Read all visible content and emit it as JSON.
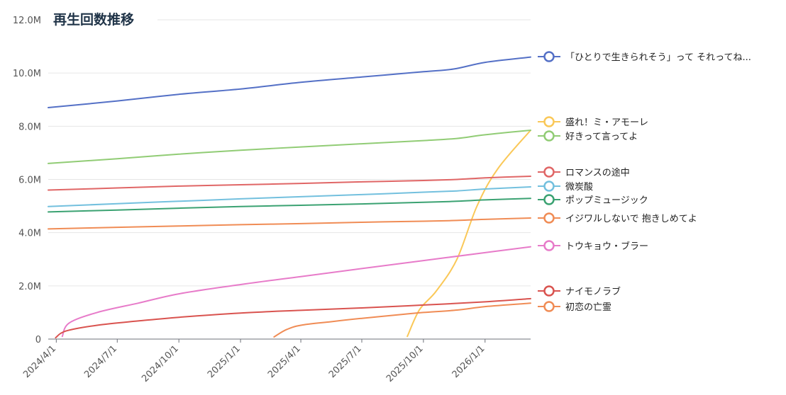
{
  "title": "再生回数推移",
  "chart_data": {
    "type": "line",
    "title": "再生回数推移",
    "xlabel": "",
    "ylabel": "",
    "x_range": [
      "2024-03-20",
      "2026-03-10"
    ],
    "ylim": [
      0,
      12000000
    ],
    "yticks": [
      {
        "value": 0,
        "label": "0"
      },
      {
        "value": 2000000,
        "label": "2.0M"
      },
      {
        "value": 4000000,
        "label": "4.0M"
      },
      {
        "value": 6000000,
        "label": "6.0M"
      },
      {
        "value": 8000000,
        "label": "8.0M"
      },
      {
        "value": 10000000,
        "label": "10.0M"
      },
      {
        "value": 12000000,
        "label": "12.0M"
      }
    ],
    "xticks": [
      {
        "date": "2024-04-01",
        "label": "2024/4/1"
      },
      {
        "date": "2024-07-01",
        "label": "2024/7/1"
      },
      {
        "date": "2024-10-01",
        "label": "2024/10/1"
      },
      {
        "date": "2025-01-01",
        "label": "2025/1/1"
      },
      {
        "date": "2025-04-01",
        "label": "2025/4/1"
      },
      {
        "date": "2025-07-01",
        "label": "2025/7/1"
      },
      {
        "date": "2025-10-01",
        "label": "2025/10/1"
      },
      {
        "date": "2026-01-01",
        "label": "2026/1/1"
      }
    ],
    "grid": true,
    "legend_position": "right",
    "series": [
      {
        "name": "「ひとりで生きられそう」って それってね...",
        "color": "#5470c6",
        "points": [
          [
            "2024-03-20",
            8700000
          ],
          [
            "2024-07-01",
            8950000
          ],
          [
            "2024-10-01",
            9200000
          ],
          [
            "2025-01-01",
            9400000
          ],
          [
            "2025-04-01",
            9650000
          ],
          [
            "2025-07-01",
            9850000
          ],
          [
            "2025-10-01",
            10050000
          ],
          [
            "2025-11-15",
            10150000
          ],
          [
            "2026-01-01",
            10400000
          ],
          [
            "2026-03-10",
            10600000
          ]
        ]
      },
      {
        "name": "盛れ！ミ・アモーレ",
        "color": "#fac858",
        "points": [
          [
            "2025-09-07",
            100000
          ],
          [
            "2025-09-25",
            1100000
          ],
          [
            "2025-10-20",
            1800000
          ],
          [
            "2025-11-20",
            3000000
          ],
          [
            "2025-12-20",
            5000000
          ],
          [
            "2026-01-20",
            6400000
          ],
          [
            "2026-03-10",
            7850000
          ]
        ]
      },
      {
        "name": "好きって言ってよ",
        "color": "#91cc75",
        "points": [
          [
            "2024-03-20",
            6600000
          ],
          [
            "2024-07-01",
            6780000
          ],
          [
            "2024-10-01",
            6950000
          ],
          [
            "2025-01-01",
            7100000
          ],
          [
            "2025-04-01",
            7220000
          ],
          [
            "2025-07-01",
            7340000
          ],
          [
            "2025-10-01",
            7460000
          ],
          [
            "2025-11-20",
            7540000
          ],
          [
            "2026-01-01",
            7680000
          ],
          [
            "2026-03-10",
            7850000
          ]
        ]
      },
      {
        "name": "ロマンスの途中",
        "color": "#e06666",
        "points": [
          [
            "2024-03-20",
            5600000
          ],
          [
            "2024-07-01",
            5680000
          ],
          [
            "2024-10-01",
            5750000
          ],
          [
            "2025-01-01",
            5800000
          ],
          [
            "2025-04-01",
            5850000
          ],
          [
            "2025-07-01",
            5910000
          ],
          [
            "2025-10-01",
            5960000
          ],
          [
            "2025-11-20",
            6000000
          ],
          [
            "2026-01-01",
            6060000
          ],
          [
            "2026-03-10",
            6120000
          ]
        ]
      },
      {
        "name": "微炭酸",
        "color": "#73c0de",
        "points": [
          [
            "2024-03-20",
            4980000
          ],
          [
            "2024-07-01",
            5090000
          ],
          [
            "2024-10-01",
            5180000
          ],
          [
            "2025-01-01",
            5270000
          ],
          [
            "2025-04-01",
            5350000
          ],
          [
            "2025-07-01",
            5430000
          ],
          [
            "2025-10-01",
            5520000
          ],
          [
            "2025-11-20",
            5570000
          ],
          [
            "2026-01-01",
            5640000
          ],
          [
            "2026-03-10",
            5720000
          ]
        ]
      },
      {
        "name": "ポップミュージック",
        "color": "#3ba272",
        "points": [
          [
            "2024-03-20",
            4780000
          ],
          [
            "2024-07-01",
            4850000
          ],
          [
            "2024-10-01",
            4920000
          ],
          [
            "2025-01-01",
            4980000
          ],
          [
            "2025-04-01",
            5030000
          ],
          [
            "2025-07-01",
            5080000
          ],
          [
            "2025-10-01",
            5140000
          ],
          [
            "2025-11-20",
            5180000
          ],
          [
            "2026-01-01",
            5230000
          ],
          [
            "2026-03-10",
            5290000
          ]
        ]
      },
      {
        "name": "イジワルしないで 抱きしめてよ",
        "color": "#f08c55",
        "points": [
          [
            "2024-03-20",
            4140000
          ],
          [
            "2024-07-01",
            4200000
          ],
          [
            "2024-10-01",
            4250000
          ],
          [
            "2025-01-01",
            4300000
          ],
          [
            "2025-04-01",
            4340000
          ],
          [
            "2025-07-01",
            4390000
          ],
          [
            "2025-10-01",
            4430000
          ],
          [
            "2025-11-20",
            4460000
          ],
          [
            "2026-01-01",
            4500000
          ],
          [
            "2026-03-10",
            4550000
          ]
        ]
      },
      {
        "name": "トウキョウ・ブラー",
        "color": "#e77bc9",
        "points": [
          [
            "2024-04-10",
            100000
          ],
          [
            "2024-04-20",
            600000
          ],
          [
            "2024-06-01",
            1000000
          ],
          [
            "2024-08-01",
            1350000
          ],
          [
            "2024-10-01",
            1700000
          ],
          [
            "2025-01-01",
            2050000
          ],
          [
            "2025-04-01",
            2350000
          ],
          [
            "2025-07-01",
            2650000
          ],
          [
            "2025-10-01",
            2950000
          ],
          [
            "2026-01-01",
            3250000
          ],
          [
            "2026-03-10",
            3470000
          ]
        ]
      },
      {
        "name": "ナイモノラブ",
        "color": "#d9534f",
        "points": [
          [
            "2024-03-31",
            50000
          ],
          [
            "2024-04-15",
            300000
          ],
          [
            "2024-06-01",
            520000
          ],
          [
            "2024-08-01",
            680000
          ],
          [
            "2024-10-01",
            820000
          ],
          [
            "2025-01-01",
            980000
          ],
          [
            "2025-04-01",
            1080000
          ],
          [
            "2025-07-01",
            1170000
          ],
          [
            "2025-10-01",
            1280000
          ],
          [
            "2026-01-01",
            1400000
          ],
          [
            "2026-03-10",
            1520000
          ]
        ]
      },
      {
        "name": "初恋の亡霊",
        "color": "#f08c55",
        "points": [
          [
            "2025-02-20",
            80000
          ],
          [
            "2025-03-10",
            350000
          ],
          [
            "2025-04-01",
            520000
          ],
          [
            "2025-05-15",
            650000
          ],
          [
            "2025-07-01",
            780000
          ],
          [
            "2025-09-01",
            930000
          ],
          [
            "2025-10-01",
            1000000
          ],
          [
            "2025-11-20",
            1090000
          ],
          [
            "2026-01-01",
            1220000
          ],
          [
            "2026-03-10",
            1350000
          ]
        ]
      }
    ]
  }
}
